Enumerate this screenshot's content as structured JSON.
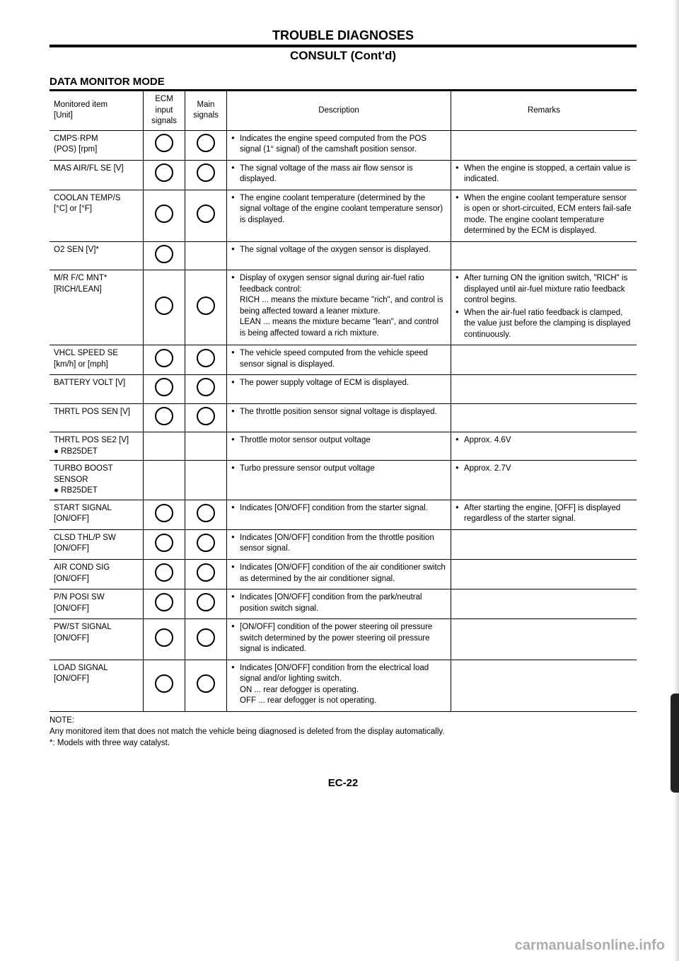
{
  "header": {
    "title": "TROUBLE DIAGNOSES",
    "subtitle": "CONSULT (Cont'd)"
  },
  "section_title": "DATA MONITOR MODE",
  "table": {
    "headers": {
      "item": "Monitored item\n[Unit]",
      "ecm": "ECM input signals",
      "main": "Main signals",
      "desc": "Description",
      "remarks": "Remarks"
    },
    "rows": [
      {
        "item": "CMPS·RPM\n(POS) [rpm]",
        "ecm": true,
        "main": true,
        "desc": [
          "Indicates the engine speed computed from the POS signal (1° signal) of the camshaft position sensor."
        ],
        "remarks": []
      },
      {
        "item": "MAS AIR/FL SE [V]",
        "ecm": true,
        "main": true,
        "desc": [
          "The signal voltage of the mass air flow sensor is displayed."
        ],
        "remarks": [
          "When the engine is stopped, a certain value is indicated."
        ]
      },
      {
        "item": "COOLAN TEMP/S\n[°C] or [°F]",
        "ecm": true,
        "main": true,
        "desc": [
          "The engine coolant temperature (determined by the signal voltage of the engine coolant temperature sensor) is displayed."
        ],
        "remarks": [
          "When the engine coolant temperature sensor is open or short-circuited, ECM enters fail-safe mode. The engine coolant temperature determined by the ECM is displayed."
        ]
      },
      {
        "item": "O2 SEN [V]*",
        "ecm": true,
        "main": false,
        "desc": [
          "The signal voltage of the oxygen sensor is displayed."
        ],
        "remarks": []
      },
      {
        "item": "M/R F/C MNT*\n[RICH/LEAN]",
        "ecm": true,
        "main": true,
        "desc": [
          "Display of oxygen sensor signal during air-fuel ratio feedback control:\nRICH ... means the mixture became \"rich\", and control is being affected toward a leaner mixture.\nLEAN ... means the mixture became \"lean\", and control is being affected toward a rich mixture."
        ],
        "remarks": [
          "After turning ON the ignition switch, \"RICH\" is displayed until air-fuel mixture ratio feedback control begins.",
          "When the air-fuel ratio feedback is clamped, the value just before the clamping is displayed continuously."
        ]
      },
      {
        "item": "VHCL SPEED SE\n[km/h] or [mph]",
        "ecm": true,
        "main": true,
        "desc": [
          "The vehicle speed computed from the vehicle speed sensor signal is displayed."
        ],
        "remarks": []
      },
      {
        "item": "BATTERY VOLT [V]",
        "ecm": true,
        "main": true,
        "desc": [
          "The power supply voltage of ECM is displayed."
        ],
        "remarks": []
      },
      {
        "item": "THRTL POS SEN [V]",
        "ecm": true,
        "main": true,
        "desc": [
          "The throttle position sensor signal voltage is displayed."
        ],
        "remarks": []
      },
      {
        "item": "THRTL POS SE2 [V]\n● RB25DET",
        "ecm": false,
        "main": false,
        "desc": [
          "Throttle motor sensor output voltage"
        ],
        "remarks": [
          "Approx. 4.6V"
        ]
      },
      {
        "item": "TURBO BOOST SENSOR\n● RB25DET",
        "ecm": false,
        "main": false,
        "desc": [
          "Turbo pressure sensor output voltage"
        ],
        "remarks": [
          "Approx. 2.7V"
        ]
      },
      {
        "item": "START SIGNAL\n[ON/OFF]",
        "ecm": true,
        "main": true,
        "desc": [
          "Indicates [ON/OFF] condition from the starter signal."
        ],
        "remarks": [
          "After starting the engine, [OFF] is displayed regardless of the starter signal."
        ]
      },
      {
        "item": "CLSD THL/P SW\n[ON/OFF]",
        "ecm": true,
        "main": true,
        "desc": [
          "Indicates [ON/OFF] condition from the throttle position sensor signal."
        ],
        "remarks": []
      },
      {
        "item": "AIR COND SIG\n[ON/OFF]",
        "ecm": true,
        "main": true,
        "desc": [
          "Indicates [ON/OFF] condition of the air conditioner switch as determined by the air conditioner signal."
        ],
        "remarks": []
      },
      {
        "item": "P/N POSI SW\n[ON/OFF]",
        "ecm": true,
        "main": true,
        "desc": [
          "Indicates [ON/OFF] condition from the park/neutral position switch signal."
        ],
        "remarks": []
      },
      {
        "item": "PW/ST SIGNAL\n[ON/OFF]",
        "ecm": true,
        "main": true,
        "desc": [
          "[ON/OFF] condition of the power steering oil pressure switch determined by the power steering oil pressure signal is indicated."
        ],
        "remarks": []
      },
      {
        "item": "LOAD SIGNAL\n[ON/OFF]",
        "ecm": true,
        "main": true,
        "desc": [
          "Indicates [ON/OFF] condition from the electrical load signal and/or lighting switch.\nON ... rear defogger is operating.\nOFF ... rear defogger is not operating."
        ],
        "remarks": []
      }
    ]
  },
  "note": {
    "label": "NOTE:",
    "line1": "Any monitored item that does not match the vehicle being diagnosed is deleted from the display automatically.",
    "line2": "*: Models with three way catalyst."
  },
  "page_number": "EC-22",
  "watermark": "carmanualsonline.info"
}
